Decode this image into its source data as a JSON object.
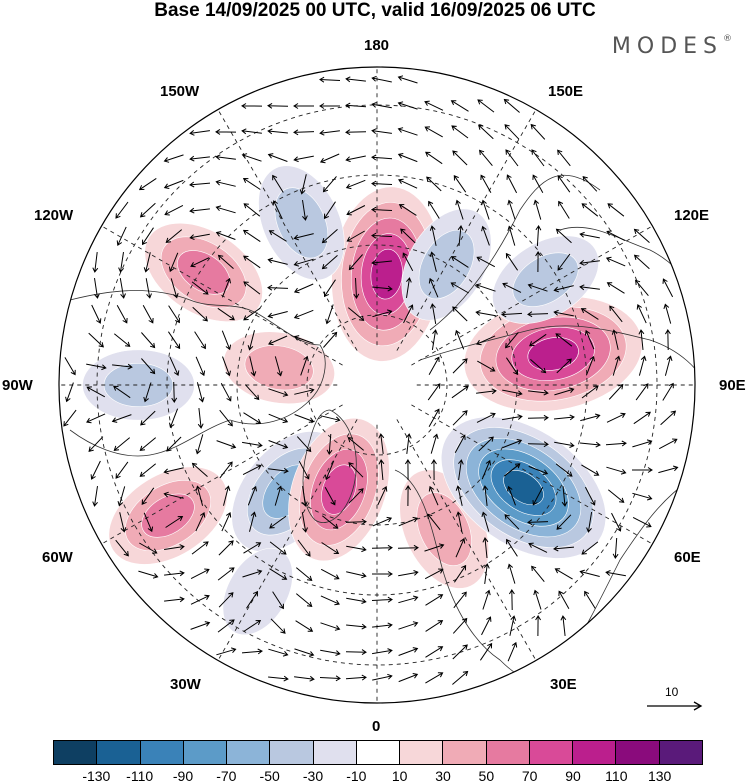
{
  "title": "Base 14/09/2025 00 UTC, valid 16/09/2025 06 UTC",
  "logo": "MODES",
  "logo_mark": "®",
  "longitude_labels": {
    "top": "180",
    "top_left": "150W",
    "top_right": "150E",
    "upper_left": "120W",
    "upper_right": "120E",
    "left": "90W",
    "right": "90E",
    "lower_left": "60W",
    "lower_right": "60E",
    "bottom_left": "30W",
    "bottom_right": "30E",
    "bottom": "0"
  },
  "reference_vector": "10",
  "colorbar": {
    "colors": [
      "#0e3f62",
      "#1a6194",
      "#3a82b8",
      "#5c9bc8",
      "#8cb4d8",
      "#b9c8e0",
      "#e0e0ee",
      "#ffffff",
      "#f7d7d9",
      "#f0abb6",
      "#e67aa0",
      "#d94a98",
      "#bb1f8d",
      "#8a0b7c",
      "#5a1a7a"
    ],
    "ticks": [
      "-130",
      "-110",
      "-90",
      "-70",
      "-50",
      "-30",
      "-10",
      "10",
      "30",
      "50",
      "70",
      "90",
      "110",
      "130"
    ]
  },
  "anomaly_centers": [
    {
      "lon_deg": 175,
      "lat_deg": 62,
      "value": 110
    },
    {
      "lon_deg": 150,
      "lat_deg": 55,
      "value": -50
    },
    {
      "lon_deg": 205,
      "lat_deg": 45,
      "value": -50
    },
    {
      "lon_deg": 237,
      "lat_deg": 38,
      "value": 60
    },
    {
      "lon_deg": 270,
      "lat_deg": 30,
      "value": -40
    },
    {
      "lon_deg": 302,
      "lat_deg": 28,
      "value": 60
    },
    {
      "lon_deg": 320,
      "lat_deg": 55,
      "value": -70
    },
    {
      "lon_deg": 340,
      "lat_deg": 62,
      "value": 80
    },
    {
      "lon_deg": 25,
      "lat_deg": 50,
      "value": 55
    },
    {
      "lon_deg": 55,
      "lat_deg": 45,
      "value": -120
    },
    {
      "lon_deg": 100,
      "lat_deg": 45,
      "value": 115
    },
    {
      "lon_deg": 122,
      "lat_deg": 40,
      "value": -45
    },
    {
      "lon_deg": 260,
      "lat_deg": 65,
      "value": 40
    },
    {
      "lon_deg": 330,
      "lat_deg": 30,
      "value": -20
    }
  ]
}
